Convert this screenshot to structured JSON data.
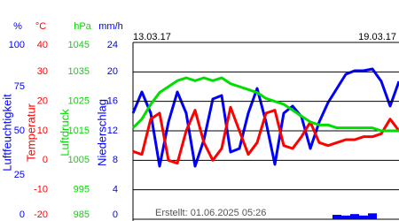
{
  "chart_data": {
    "type": "line",
    "x_labels": [
      "13.03.17",
      "19.03.17"
    ],
    "note": "Erstellt: 01.06.2025 05:26",
    "axes": [
      {
        "unit": "%",
        "title": "Luftfeuchtigkeit",
        "color": "#0000ff",
        "type": "line",
        "ylim": [
          0,
          100
        ],
        "yticks": [
          100,
          75,
          50,
          25,
          0
        ],
        "values": [
          60,
          72,
          60,
          30,
          55,
          72,
          60,
          30,
          45,
          68,
          70,
          38,
          40,
          60,
          74,
          55,
          31,
          60,
          64,
          58,
          40,
          55,
          66,
          74,
          82,
          84,
          84,
          85,
          78,
          64,
          78
        ]
      },
      {
        "unit": "°C",
        "title": "Temperatur",
        "color": "#ff0000",
        "type": "line",
        "ylim": [
          -20,
          40
        ],
        "yticks": [
          40,
          30,
          20,
          10,
          0,
          -10,
          -20
        ],
        "grid": true,
        "values": [
          3,
          2,
          14,
          16,
          0,
          -1,
          10,
          17,
          6,
          0,
          4,
          18,
          10,
          2,
          6,
          16,
          17,
          5,
          4,
          8,
          13,
          6,
          5,
          6,
          7,
          7,
          8,
          8,
          9,
          14,
          10
        ]
      },
      {
        "unit": "hPa",
        "title": "Luftdruck",
        "color": "#00dd00",
        "type": "line",
        "ylim": [
          985,
          1045
        ],
        "yticks": [
          1045,
          1035,
          1025,
          1015,
          1005,
          995,
          985
        ],
        "values": [
          1016,
          1019,
          1024,
          1028,
          1030,
          1032,
          1033,
          1032,
          1033,
          1032,
          1033,
          1031,
          1030,
          1029,
          1028,
          1026,
          1025,
          1024,
          1022,
          1020,
          1018,
          1017,
          1017,
          1016,
          1016,
          1016,
          1016,
          1016,
          1015,
          1015,
          1015
        ]
      },
      {
        "unit": "mm/h",
        "title": "Niederschlag",
        "color": "#0000ff",
        "type": "bar",
        "ylim": [
          0,
          24
        ],
        "yticks": [
          24,
          20,
          16,
          12,
          8,
          4,
          0
        ],
        "values": [
          0,
          0,
          0,
          0,
          0,
          0,
          0,
          0,
          0,
          0,
          0,
          0,
          0,
          0,
          0,
          0,
          0,
          0,
          0,
          0,
          0,
          0,
          0,
          0.6,
          0.5,
          0.7,
          0.5,
          0.8,
          0,
          0,
          0
        ]
      }
    ]
  }
}
